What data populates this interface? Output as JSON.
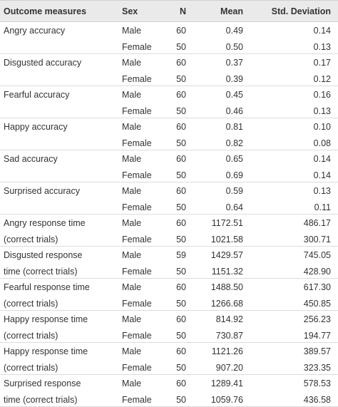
{
  "header": {
    "measure": "Outcome measures",
    "sex": "Sex",
    "n": "N",
    "mean": "Mean",
    "sd": "Std. Deviation"
  },
  "rows": [
    {
      "measure_line1": "Angry accuracy",
      "measure_line2": "",
      "r1": {
        "sex": "Male",
        "n": "60",
        "mean": "0.49",
        "sd": "0.14"
      },
      "r2": {
        "sex": "Female",
        "n": "50",
        "mean": "0.50",
        "sd": "0.13"
      }
    },
    {
      "measure_line1": "Disgusted accuracy",
      "measure_line2": "",
      "r1": {
        "sex": "Male",
        "n": "60",
        "mean": "0.37",
        "sd": "0.17"
      },
      "r2": {
        "sex": "Female",
        "n": "50",
        "mean": "0.39",
        "sd": "0.12"
      }
    },
    {
      "measure_line1": "Fearful accuracy",
      "measure_line2": "",
      "r1": {
        "sex": "Male",
        "n": "60",
        "mean": "0.45",
        "sd": "0.16"
      },
      "r2": {
        "sex": "Female",
        "n": "50",
        "mean": "0.46",
        "sd": "0.13"
      }
    },
    {
      "measure_line1": "Happy accuracy",
      "measure_line2": "",
      "r1": {
        "sex": "Male",
        "n": "60",
        "mean": "0.81",
        "sd": "0.10"
      },
      "r2": {
        "sex": "Female",
        "n": "50",
        "mean": "0.82",
        "sd": "0.08"
      }
    },
    {
      "measure_line1": "Sad accuracy",
      "measure_line2": "",
      "r1": {
        "sex": "Male",
        "n": "60",
        "mean": "0.65",
        "sd": "0.14"
      },
      "r2": {
        "sex": "Female",
        "n": "50",
        "mean": "0.69",
        "sd": "0.14"
      }
    },
    {
      "measure_line1": "Surprised accuracy",
      "measure_line2": "",
      "r1": {
        "sex": "Male",
        "n": "60",
        "mean": "0.59",
        "sd": "0.13"
      },
      "r2": {
        "sex": "Female",
        "n": "50",
        "mean": "0.64",
        "sd": "0.11"
      }
    },
    {
      "measure_line1": "Angry response time",
      "measure_line2": "(correct trials)",
      "r1": {
        "sex": "Male",
        "n": "60",
        "mean": "1172.51",
        "sd": "486.17"
      },
      "r2": {
        "sex": "Female",
        "n": "50",
        "mean": "1021.58",
        "sd": "300.71"
      }
    },
    {
      "measure_line1": "Disgusted response",
      "measure_line2": "time (correct trials)",
      "r1": {
        "sex": "Male",
        "n": "59",
        "mean": "1429.57",
        "sd": "745.05"
      },
      "r2": {
        "sex": "Female",
        "n": "50",
        "mean": "1151.32",
        "sd": "428.90"
      }
    },
    {
      "measure_line1": "Fearful response time",
      "measure_line2": "(correct trials)",
      "r1": {
        "sex": "Male",
        "n": "60",
        "mean": "1488.50",
        "sd": "617.30"
      },
      "r2": {
        "sex": "Female",
        "n": "50",
        "mean": "1266.68",
        "sd": "450.85"
      }
    },
    {
      "measure_line1": "Happy response time",
      "measure_line2": "(correct trials)",
      "r1": {
        "sex": "Male",
        "n": "60",
        "mean": "814.92",
        "sd": "256.23"
      },
      "r2": {
        "sex": "Female",
        "n": "50",
        "mean": "730.87",
        "sd": "194.77"
      }
    },
    {
      "measure_line1": "Happy response time",
      "measure_line2": "(correct trials)",
      "r1": {
        "sex": "Male",
        "n": "60",
        "mean": "1121.26",
        "sd": "389.57"
      },
      "r2": {
        "sex": "Female",
        "n": "50",
        "mean": "907.20",
        "sd": "323.35"
      }
    },
    {
      "measure_line1": "Surprised response",
      "measure_line2": "time (correct trials)",
      "r1": {
        "sex": "Male",
        "n": "60",
        "mean": "1289.41",
        "sd": "578.53"
      },
      "r2": {
        "sex": "Female",
        "n": "50",
        "mean": "1059.76",
        "sd": "436.58"
      }
    }
  ]
}
